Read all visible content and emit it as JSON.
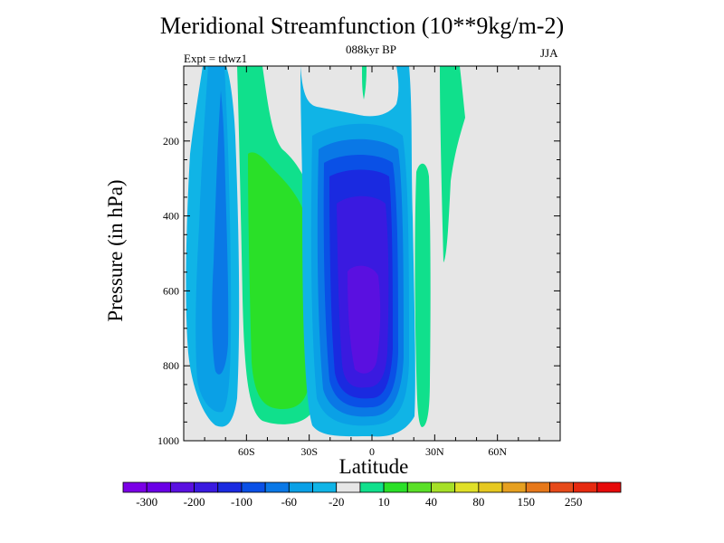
{
  "chart_data": {
    "type": "filled-contour",
    "title": "Meridional Streamfunction (10**9kg/m-2)",
    "subtitle": "088kyr BP",
    "left_label": "Expt = tdwz1",
    "right_label": "JJA",
    "xlabel": "Latitude",
    "ylabel": "Pressure (in hPa)",
    "xlim": [
      -90,
      90
    ],
    "ylim": [
      1000,
      0
    ],
    "x_ticks": [
      {
        "value": -60,
        "label": "60S"
      },
      {
        "value": -30,
        "label": "30S"
      },
      {
        "value": 0,
        "label": "0"
      },
      {
        "value": 30,
        "label": "30N"
      },
      {
        "value": 60,
        "label": "60N"
      }
    ],
    "y_ticks": [
      {
        "value": 200,
        "label": "200"
      },
      {
        "value": 400,
        "label": "400"
      },
      {
        "value": 600,
        "label": "600"
      },
      {
        "value": 800,
        "label": "800"
      },
      {
        "value": 1000,
        "label": "1000"
      }
    ],
    "background_color": "#e6e6e6",
    "colorbar": {
      "colors": [
        "#7b00e6",
        "#6a00e6",
        "#5a10e0",
        "#3a1ae0",
        "#1a2ae0",
        "#0a50e6",
        "#0a78e6",
        "#0aa0e6",
        "#10b4e6",
        "#e6e6e6",
        "#10e08c",
        "#2ae028",
        "#5ae028",
        "#a6e028",
        "#e0e028",
        "#e6c820",
        "#e6a020",
        "#e6781a",
        "#e64a1a",
        "#e62a10",
        "#e60a0a"
      ],
      "labels": [
        "-300",
        "-200",
        "-100",
        "-60",
        "-20",
        "10",
        "40",
        "80",
        "150",
        "250"
      ]
    }
  }
}
